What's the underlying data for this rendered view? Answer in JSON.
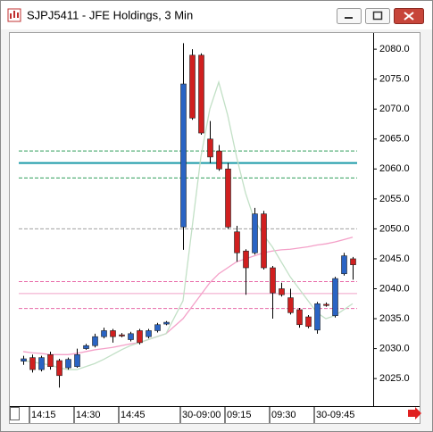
{
  "chart_data": {
    "type": "candlestick",
    "title": "SJPJ5411 - JFE Holdings, 3 Min",
    "categories": [
      null,
      "14:15",
      null,
      null,
      null,
      null,
      "14:30",
      null,
      null,
      null,
      null,
      "14:45",
      null,
      null,
      null,
      null,
      null,
      "30-09:00",
      null,
      null,
      null,
      null,
      "09:15",
      null,
      null,
      null,
      null,
      "09:30",
      null,
      null,
      null,
      null,
      "30-09:45",
      null,
      null,
      null,
      null
    ],
    "open": [
      2027.9,
      2028.5,
      2026.5,
      2029.0,
      2028.0,
      2026.8,
      2027.0,
      2030.0,
      2030.5,
      2032.0,
      2033.0,
      2032.3,
      2031.5,
      2033.0,
      2032.0,
      2033.0,
      2034.1,
      2050.3,
      2079.0,
      2079.0,
      2065.0,
      2063.0,
      2060.0,
      2049.5,
      2046.3,
      2046.0,
      2052.5,
      2043.5,
      2040.0,
      2038.5,
      2036.5,
      2035.3,
      2033.1,
      2037.4,
      2035.5,
      2042.5,
      2045.0
    ],
    "high": [
      2028.8,
      2029.0,
      2028.8,
      2029.5,
      2028.3,
      2028.5,
      2030.0,
      2030.8,
      2032.5,
      2033.5,
      2033.3,
      2032.6,
      2032.8,
      2033.3,
      2033.3,
      2034.3,
      2034.6,
      2081.0,
      2080.0,
      2079.3,
      2068.0,
      2064.0,
      2061.0,
      2050.5,
      2046.6,
      2053.5,
      2053.0,
      2043.8,
      2041.0,
      2040.0,
      2036.8,
      2035.6,
      2037.8,
      2037.7,
      2042.0,
      2046.0,
      2045.3
    ],
    "low": [
      2027.3,
      2026.0,
      2026.2,
      2026.5,
      2023.5,
      2026.5,
      2026.8,
      2029.8,
      2030.2,
      2031.7,
      2031.0,
      2031.9,
      2031.2,
      2030.7,
      2031.7,
      2032.7,
      2033.9,
      2046.5,
      2068.2,
      2065.7,
      2061.0,
      2059.7,
      2050.0,
      2044.5,
      2039.0,
      2045.7,
      2043.2,
      2035.0,
      2038.7,
      2035.7,
      2033.5,
      2033.4,
      2032.5,
      2037.0,
      2035.2,
      2042.2,
      2041.5
    ],
    "close": [
      2028.3,
      2026.5,
      2028.5,
      2027.0,
      2025.5,
      2028.2,
      2029.0,
      2030.5,
      2032.0,
      2033.0,
      2032.0,
      2032.1,
      2032.5,
      2031.0,
      2033.0,
      2034.0,
      2034.4,
      2074.2,
      2068.5,
      2066.0,
      2062.0,
      2060.0,
      2050.3,
      2046.0,
      2043.5,
      2052.5,
      2043.5,
      2039.3,
      2039.0,
      2036.0,
      2034.0,
      2033.7,
      2037.5,
      2037.2,
      2041.7,
      2045.5,
      2044.0
    ],
    "up_color": "#2a64c4",
    "down_color": "#d01f1f",
    "ma": [
      {
        "color": "#f4a0c8",
        "values": [
          2029.5,
          2029.3,
          2029.2,
          2029.0,
          2029.0,
          2029.0,
          2029.2,
          2029.5,
          2029.8,
          2030.0,
          2030.2,
          2030.5,
          2030.8,
          2031.0,
          2031.5,
          2032.0,
          2032.5,
          2035.0,
          2037.0,
          2039.0,
          2041.0,
          2042.5,
          2043.5,
          2044.5,
          2045.0,
          2045.5,
          2046.0,
          2046.3,
          2046.5,
          2046.6,
          2046.8,
          2047.0,
          2047.3,
          2047.5,
          2047.8,
          2048.2,
          2048.6
        ]
      },
      {
        "color": "#c2e0c6",
        "values": [
          2028.0,
          2027.8,
          2027.5,
          2027.3,
          2026.8,
          2026.5,
          2026.5,
          2027.0,
          2027.5,
          2028.2,
          2029.0,
          2029.8,
          2030.5,
          2031.0,
          2031.5,
          2032.0,
          2032.5,
          2038.0,
          2050.0,
          2062.0,
          2070.0,
          2074.5,
          2069.0,
          2062.0,
          2056.0,
          2051.5,
          2049.0,
          2047.0,
          2044.5,
          2042.0,
          2040.0,
          2038.0,
          2036.0,
          2035.0,
          2035.5,
          2036.5,
          2037.5
        ]
      }
    ],
    "levels": [
      {
        "value": 2063.0,
        "color": "#2e9e5a",
        "style": "dashed"
      },
      {
        "value": 2061.0,
        "color": "#1a9aa8",
        "style": "thick"
      },
      {
        "value": 2058.5,
        "color": "#2e9e5a",
        "style": "dashed"
      },
      {
        "value": 2050.0,
        "color": "#a0a0a0",
        "style": "dashed"
      },
      {
        "value": 2041.2,
        "color": "#e86aa8",
        "style": "dashed"
      },
      {
        "value": 2039.2,
        "color": "#f0a0c8",
        "style": "solid"
      },
      {
        "value": 2036.7,
        "color": "#e86aa8",
        "style": "dashed"
      }
    ],
    "ylim": [
      2020.4,
      2082.7
    ],
    "yticks": [
      {
        "value": 2025,
        "label": "2025.0"
      },
      {
        "value": 2030,
        "label": "2030.0"
      },
      {
        "value": 2035,
        "label": "2035.0"
      },
      {
        "value": 2040,
        "label": "2040.0"
      },
      {
        "value": 2045,
        "label": "2045.0"
      },
      {
        "value": 2050,
        "label": "2050.0"
      },
      {
        "value": 2055,
        "label": "2055.0"
      },
      {
        "value": 2060,
        "label": "2060.0"
      },
      {
        "value": 2065,
        "label": "2065.0"
      },
      {
        "value": 2070,
        "label": "2070.0"
      },
      {
        "value": 2075,
        "label": "2075.0"
      },
      {
        "value": 2080,
        "label": "2080.0"
      }
    ]
  }
}
